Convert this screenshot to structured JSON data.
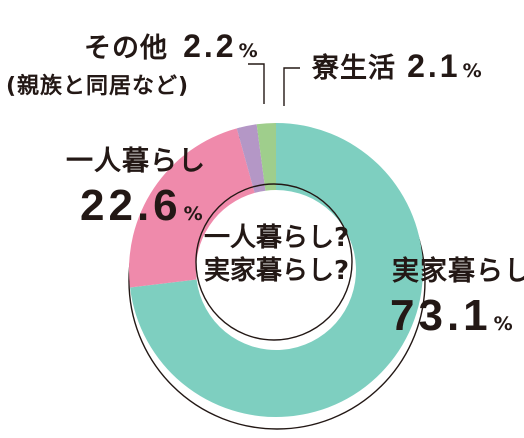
{
  "chart_data": {
    "type": "pie",
    "title": "",
    "center_text": [
      "一人暮らし?",
      "実家暮らし?"
    ],
    "slices": [
      {
        "name": "実家暮らし",
        "value": 73.1,
        "unit": "%",
        "color": "#7ecfc0"
      },
      {
        "name": "一人暮らし",
        "value": 22.6,
        "unit": "%",
        "color": "#ef8aab"
      },
      {
        "name": "その他",
        "note": "(親族と同居など)",
        "value": 2.2,
        "unit": "%",
        "color": "#b497c6"
      },
      {
        "name": "寮生活",
        "value": 2.1,
        "unit": "%",
        "color": "#9fce8c"
      }
    ]
  }
}
